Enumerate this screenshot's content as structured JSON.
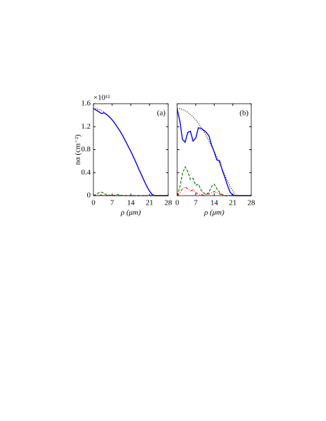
{
  "chart_data": [
    {
      "type": "line",
      "annotation": "(a)",
      "ylabel": "nα (cm⁻²)",
      "y_multiplier": "×10¹²",
      "xlabel": "ρ (μm)",
      "x": [
        0,
        1,
        2,
        3,
        4,
        5,
        6,
        7,
        8,
        9,
        10,
        11,
        12,
        13,
        14,
        15,
        16,
        17,
        18,
        19,
        20,
        21,
        22,
        23,
        24,
        25,
        26,
        27,
        28
      ],
      "xlim": [
        0,
        28
      ],
      "ylim": [
        0,
        1.6
      ],
      "xticks": [
        0,
        7,
        14,
        21,
        28
      ],
      "yticks": [
        0,
        0.4,
        0.8,
        1.2,
        1.6
      ],
      "series": [
        {
          "color": "#000000",
          "style": "dotted",
          "values": [
            1.52,
            1.515,
            1.5,
            1.48,
            1.45,
            1.41,
            1.37,
            1.32,
            1.26,
            1.19,
            1.12,
            1.04,
            0.95,
            0.86,
            0.77,
            0.67,
            0.57,
            0.46,
            0.36,
            0.26,
            0.16,
            0.08,
            0.01,
            0,
            0,
            0,
            0,
            0,
            0
          ]
        },
        {
          "color": "#0000ff",
          "style": "solid",
          "values": [
            1.51,
            1.49,
            1.46,
            1.43,
            1.44,
            1.41,
            1.37,
            1.32,
            1.26,
            1.19,
            1.12,
            1.04,
            0.95,
            0.86,
            0.77,
            0.67,
            0.57,
            0.46,
            0.36,
            0.26,
            0.16,
            0.08,
            0.02,
            0,
            0,
            0,
            0,
            0,
            0
          ]
        },
        {
          "color": "#008000",
          "style": "dashed",
          "values": [
            0,
            0.02,
            0.05,
            0.06,
            0.04,
            0.01,
            0.01,
            0,
            0.01,
            0.02,
            0.01,
            0,
            0,
            0,
            0,
            0,
            0,
            0,
            0,
            0,
            0,
            0,
            0,
            0,
            0,
            0,
            0,
            0,
            0
          ]
        },
        {
          "color": "#ff0000",
          "style": "dashdot",
          "values": [
            0,
            0,
            0.01,
            0.01,
            0.01,
            0,
            0,
            0,
            0,
            0,
            0,
            0,
            0,
            0,
            0,
            0,
            0,
            0,
            0,
            0,
            0,
            0,
            0,
            0,
            0,
            0,
            0,
            0,
            0
          ]
        }
      ]
    },
    {
      "type": "line",
      "annotation": "(b)",
      "xlabel": "ρ (μm)",
      "x": [
        0,
        1,
        2,
        3,
        4,
        5,
        6,
        7,
        8,
        9,
        10,
        11,
        12,
        13,
        14,
        15,
        16,
        17,
        18,
        19,
        20,
        21,
        22,
        23,
        24,
        25,
        26,
        27,
        28
      ],
      "xlim": [
        0,
        28
      ],
      "ylim": [
        0,
        1.6
      ],
      "xticks": [
        0,
        7,
        14,
        21,
        28
      ],
      "series": [
        {
          "color": "#000000",
          "style": "dotted",
          "values": [
            1.52,
            1.515,
            1.5,
            1.48,
            1.45,
            1.41,
            1.37,
            1.32,
            1.26,
            1.19,
            1.12,
            1.04,
            0.95,
            0.86,
            0.77,
            0.67,
            0.57,
            0.46,
            0.36,
            0.26,
            0.16,
            0.08,
            0.01,
            0,
            0,
            0,
            0,
            0,
            0
          ]
        },
        {
          "color": "#0000ff",
          "style": "solid",
          "values": [
            1.5,
            1.3,
            0.98,
            0.93,
            1.1,
            1.12,
            0.95,
            1.0,
            1.18,
            1.17,
            1.14,
            1.1,
            1.04,
            0.88,
            0.76,
            0.62,
            0.61,
            0.45,
            0.32,
            0.18,
            0.06,
            0.01,
            0,
            0,
            0,
            0,
            0,
            0,
            0
          ]
        },
        {
          "color": "#008000",
          "style": "dashed",
          "values": [
            0,
            0.15,
            0.38,
            0.5,
            0.42,
            0.28,
            0.3,
            0.18,
            0.2,
            0.1,
            0.05,
            0.02,
            0.06,
            0.16,
            0.2,
            0.12,
            0.06,
            0.02,
            0,
            0,
            0,
            0,
            0,
            0,
            0,
            0,
            0,
            0,
            0
          ]
        },
        {
          "color": "#ff0000",
          "style": "dashdot",
          "values": [
            0,
            0.05,
            0.12,
            0.15,
            0.12,
            0.08,
            0.1,
            0.05,
            0.03,
            0.02,
            0.01,
            0.02,
            0.03,
            0.05,
            0.07,
            0.05,
            0.03,
            0.01,
            0,
            0,
            0,
            0,
            0,
            0,
            0,
            0,
            0,
            0,
            0
          ]
        }
      ]
    }
  ]
}
